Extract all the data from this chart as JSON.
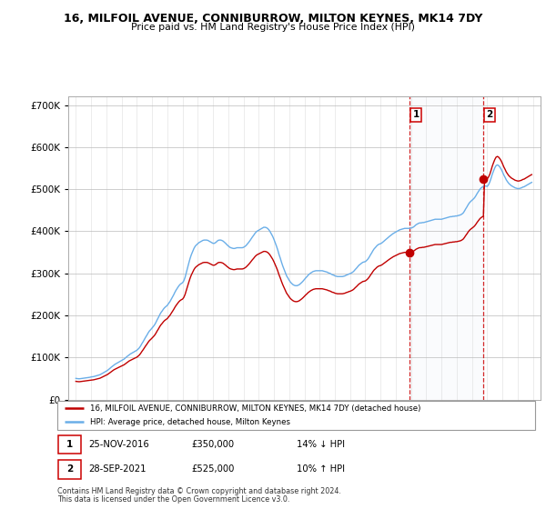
{
  "title": "16, MILFOIL AVENUE, CONNIBURROW, MILTON KEYNES, MK14 7DY",
  "subtitle": "Price paid vs. HM Land Registry's House Price Index (HPI)",
  "legend_entry1": "16, MILFOIL AVENUE, CONNIBURROW, MILTON KEYNES, MK14 7DY (detached house)",
  "legend_entry2": "HPI: Average price, detached house, Milton Keynes",
  "annotation1_label": "1",
  "annotation1_date": "25-NOV-2016",
  "annotation1_price": 350000,
  "annotation1_pct": "14% ↓ HPI",
  "annotation1_year": 2016.9,
  "annotation2_label": "2",
  "annotation2_date": "28-SEP-2021",
  "annotation2_price": 525000,
  "annotation2_pct": "10% ↑ HPI",
  "annotation2_year": 2021.75,
  "footnote1": "Contains HM Land Registry data © Crown copyright and database right 2024.",
  "footnote2": "This data is licensed under the Open Government Licence v3.0.",
  "hpi_color": "#6aaee8",
  "price_color": "#c00000",
  "background_color": "#ffffff",
  "plot_bg_color": "#ffffff",
  "annotation_bg": "#dce6f1",
  "ylim_min": 0,
  "ylim_max": 720000,
  "hpi_years": [
    1995.0,
    1995.08,
    1995.17,
    1995.25,
    1995.33,
    1995.42,
    1995.5,
    1995.58,
    1995.67,
    1995.75,
    1995.83,
    1995.92,
    1996.0,
    1996.08,
    1996.17,
    1996.25,
    1996.33,
    1996.42,
    1996.5,
    1996.58,
    1996.67,
    1996.75,
    1996.83,
    1996.92,
    1997.0,
    1997.08,
    1997.17,
    1997.25,
    1997.33,
    1997.42,
    1997.5,
    1997.58,
    1997.67,
    1997.75,
    1997.83,
    1997.92,
    1998.0,
    1998.08,
    1998.17,
    1998.25,
    1998.33,
    1998.42,
    1998.5,
    1998.58,
    1998.67,
    1998.75,
    1998.83,
    1998.92,
    1999.0,
    1999.08,
    1999.17,
    1999.25,
    1999.33,
    1999.42,
    1999.5,
    1999.58,
    1999.67,
    1999.75,
    1999.83,
    1999.92,
    2000.0,
    2000.08,
    2000.17,
    2000.25,
    2000.33,
    2000.42,
    2000.5,
    2000.58,
    2000.67,
    2000.75,
    2000.83,
    2000.92,
    2001.0,
    2001.08,
    2001.17,
    2001.25,
    2001.33,
    2001.42,
    2001.5,
    2001.58,
    2001.67,
    2001.75,
    2001.83,
    2001.92,
    2002.0,
    2002.08,
    2002.17,
    2002.25,
    2002.33,
    2002.42,
    2002.5,
    2002.58,
    2002.67,
    2002.75,
    2002.83,
    2002.92,
    2003.0,
    2003.08,
    2003.17,
    2003.25,
    2003.33,
    2003.42,
    2003.5,
    2003.58,
    2003.67,
    2003.75,
    2003.83,
    2003.92,
    2004.0,
    2004.08,
    2004.17,
    2004.25,
    2004.33,
    2004.42,
    2004.5,
    2004.58,
    2004.67,
    2004.75,
    2004.83,
    2004.92,
    2005.0,
    2005.08,
    2005.17,
    2005.25,
    2005.33,
    2005.42,
    2005.5,
    2005.58,
    2005.67,
    2005.75,
    2005.83,
    2005.92,
    2006.0,
    2006.08,
    2006.17,
    2006.25,
    2006.33,
    2006.42,
    2006.5,
    2006.58,
    2006.67,
    2006.75,
    2006.83,
    2006.92,
    2007.0,
    2007.08,
    2007.17,
    2007.25,
    2007.33,
    2007.42,
    2007.5,
    2007.58,
    2007.67,
    2007.75,
    2007.83,
    2007.92,
    2008.0,
    2008.08,
    2008.17,
    2008.25,
    2008.33,
    2008.42,
    2008.5,
    2008.58,
    2008.67,
    2008.75,
    2008.83,
    2008.92,
    2009.0,
    2009.08,
    2009.17,
    2009.25,
    2009.33,
    2009.42,
    2009.5,
    2009.58,
    2009.67,
    2009.75,
    2009.83,
    2009.92,
    2010.0,
    2010.08,
    2010.17,
    2010.25,
    2010.33,
    2010.42,
    2010.5,
    2010.58,
    2010.67,
    2010.75,
    2010.83,
    2010.92,
    2011.0,
    2011.08,
    2011.17,
    2011.25,
    2011.33,
    2011.42,
    2011.5,
    2011.58,
    2011.67,
    2011.75,
    2011.83,
    2011.92,
    2012.0,
    2012.08,
    2012.17,
    2012.25,
    2012.33,
    2012.42,
    2012.5,
    2012.58,
    2012.67,
    2012.75,
    2012.83,
    2012.92,
    2013.0,
    2013.08,
    2013.17,
    2013.25,
    2013.33,
    2013.42,
    2013.5,
    2013.58,
    2013.67,
    2013.75,
    2013.83,
    2013.92,
    2014.0,
    2014.08,
    2014.17,
    2014.25,
    2014.33,
    2014.42,
    2014.5,
    2014.58,
    2014.67,
    2014.75,
    2014.83,
    2014.92,
    2015.0,
    2015.08,
    2015.17,
    2015.25,
    2015.33,
    2015.42,
    2015.5,
    2015.58,
    2015.67,
    2015.75,
    2015.83,
    2015.92,
    2016.0,
    2016.08,
    2016.17,
    2016.25,
    2016.33,
    2016.42,
    2016.5,
    2016.58,
    2016.67,
    2016.75,
    2016.83,
    2016.92,
    2017.0,
    2017.08,
    2017.17,
    2017.25,
    2017.33,
    2017.42,
    2017.5,
    2017.58,
    2017.67,
    2017.75,
    2017.83,
    2017.92,
    2018.0,
    2018.08,
    2018.17,
    2018.25,
    2018.33,
    2018.42,
    2018.5,
    2018.58,
    2018.67,
    2018.75,
    2018.83,
    2018.92,
    2019.0,
    2019.08,
    2019.17,
    2019.25,
    2019.33,
    2019.42,
    2019.5,
    2019.58,
    2019.67,
    2019.75,
    2019.83,
    2019.92,
    2020.0,
    2020.08,
    2020.17,
    2020.25,
    2020.33,
    2020.42,
    2020.5,
    2020.58,
    2020.67,
    2020.75,
    2020.83,
    2020.92,
    2021.0,
    2021.08,
    2021.17,
    2021.25,
    2021.33,
    2021.42,
    2021.5,
    2021.58,
    2021.67,
    2021.75,
    2021.83,
    2021.92,
    2022.0,
    2022.08,
    2022.17,
    2022.25,
    2022.33,
    2022.42,
    2022.5,
    2022.58,
    2022.67,
    2022.75,
    2022.83,
    2022.92,
    2023.0,
    2023.08,
    2023.17,
    2023.25,
    2023.33,
    2023.42,
    2023.5,
    2023.58,
    2023.67,
    2023.75,
    2023.83,
    2023.92,
    2024.0,
    2024.08,
    2024.17,
    2024.25,
    2024.33,
    2024.42,
    2024.5,
    2024.58,
    2024.67,
    2024.75,
    2024.83,
    2024.92
  ],
  "hpi_index": [
    58,
    57.5,
    57,
    57,
    57.5,
    58,
    58.5,
    59,
    59.5,
    60,
    60.5,
    61,
    62,
    62.5,
    63,
    64,
    65,
    66,
    67,
    68,
    70,
    72,
    74,
    76,
    78,
    80,
    83,
    86,
    89,
    92,
    95,
    97,
    99,
    101,
    103,
    105,
    107,
    109,
    111,
    114,
    117,
    120,
    123,
    125,
    127,
    129,
    131,
    133,
    135,
    138,
    142,
    147,
    153,
    159,
    165,
    171,
    177,
    183,
    188,
    192,
    196,
    200,
    205,
    211,
    218,
    225,
    232,
    238,
    243,
    248,
    252,
    255,
    258,
    263,
    268,
    274,
    280,
    287,
    294,
    300,
    306,
    311,
    315,
    318,
    320,
    325,
    335,
    348,
    362,
    375,
    387,
    397,
    406,
    414,
    420,
    424,
    427,
    430,
    432,
    434,
    436,
    437,
    437,
    437,
    436,
    434,
    432,
    430,
    428,
    428,
    430,
    433,
    436,
    437,
    437,
    436,
    434,
    431,
    428,
    424,
    421,
    418,
    416,
    415,
    414,
    414,
    415,
    416,
    416,
    416,
    416,
    416,
    417,
    419,
    422,
    426,
    430,
    435,
    440,
    445,
    450,
    455,
    459,
    462,
    464,
    466,
    468,
    470,
    472,
    472,
    471,
    469,
    465,
    460,
    454,
    447,
    439,
    430,
    420,
    410,
    398,
    387,
    376,
    366,
    356,
    347,
    339,
    333,
    327,
    322,
    318,
    315,
    313,
    312,
    312,
    313,
    315,
    318,
    321,
    325,
    329,
    333,
    337,
    341,
    344,
    347,
    349,
    351,
    352,
    353,
    353,
    353,
    353,
    353,
    353,
    352,
    351,
    350,
    349,
    347,
    346,
    344,
    342,
    341,
    339,
    338,
    337,
    337,
    337,
    337,
    337,
    338,
    339,
    341,
    342,
    344,
    345,
    347,
    349,
    352,
    356,
    360,
    364,
    368,
    371,
    374,
    376,
    377,
    378,
    381,
    385,
    390,
    396,
    402,
    408,
    413,
    417,
    421,
    424,
    426,
    427,
    429,
    432,
    435,
    438,
    441,
    444,
    447,
    450,
    453,
    455,
    457,
    459,
    461,
    463,
    465,
    466,
    467,
    468,
    469,
    469,
    469,
    469,
    469,
    470,
    471,
    473,
    476,
    479,
    481,
    483,
    484,
    484,
    485,
    485,
    486,
    487,
    488,
    489,
    490,
    491,
    492,
    493,
    494,
    494,
    494,
    494,
    494,
    494,
    495,
    496,
    497,
    498,
    499,
    500,
    501,
    501,
    502,
    502,
    503,
    503,
    504,
    505,
    506,
    508,
    511,
    516,
    522,
    528,
    534,
    539,
    543,
    546,
    549,
    553,
    558,
    564,
    570,
    575,
    579,
    582,
    584,
    585,
    585,
    584,
    588,
    596,
    606,
    617,
    627,
    635,
    641,
    643,
    641,
    637,
    631,
    624,
    616,
    609,
    602,
    597,
    592,
    589,
    586,
    584,
    582,
    580,
    579,
    578,
    578,
    579,
    580,
    582,
    583,
    585,
    587,
    589,
    591,
    593,
    595
  ],
  "sale_years": [
    2016.9,
    2021.75
  ],
  "sale_prices": [
    350000,
    525000
  ]
}
